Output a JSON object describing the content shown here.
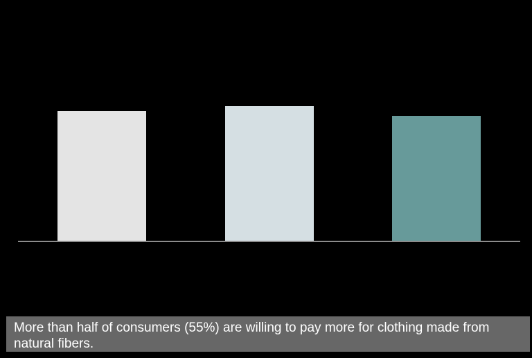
{
  "page": {
    "background": "#000000"
  },
  "chart_data": {
    "type": "bar",
    "title": "",
    "xlabel": "",
    "ylabel": "",
    "categories": [
      "",
      "",
      ""
    ],
    "values": [
      53,
      55,
      51
    ],
    "unit": "%",
    "ylim": [
      0,
      100
    ],
    "grid": false,
    "legend": false,
    "axes_labeled": false,
    "bar_colors": [
      "#e4e4e4",
      "#d5dfe3",
      "#679a9a"
    ],
    "axis_line_color": "#8c8c8c",
    "background_color": "#000000"
  },
  "caption": {
    "text": "More than half of consumers (55%) are willing to pay more for clothing made from natural fibers.",
    "background": "#676767",
    "text_color": "#ffffff"
  }
}
